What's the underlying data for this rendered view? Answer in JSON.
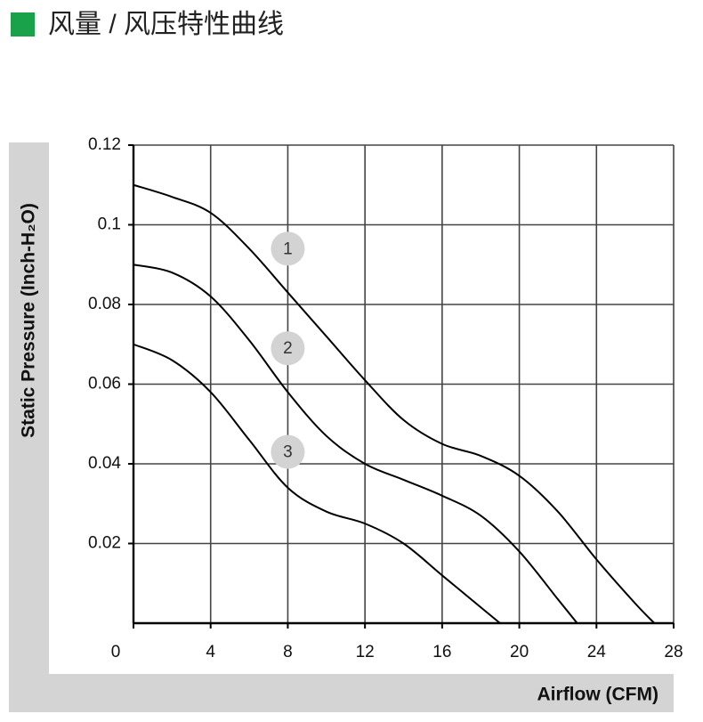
{
  "chart_data": {
    "type": "line",
    "title": "风量 / 风压特性曲线",
    "xlabel": "Airflow (CFM)",
    "ylabel": "Static Pressure (Inch-H₂O)",
    "xlim": [
      0,
      28
    ],
    "ylim": [
      0,
      0.12
    ],
    "xticks": [
      0,
      4,
      8,
      12,
      16,
      20,
      24,
      28
    ],
    "yticks": [
      0.02,
      0.04,
      0.06,
      0.08,
      0.1,
      0.12
    ],
    "grid": true,
    "series": [
      {
        "name": "1",
        "color": "#000000",
        "x": [
          0,
          2,
          4,
          6,
          8,
          10,
          12,
          14,
          16,
          18,
          20,
          22,
          24,
          26,
          27
        ],
        "values": [
          0.11,
          0.107,
          0.103,
          0.094,
          0.083,
          0.072,
          0.061,
          0.051,
          0.045,
          0.042,
          0.037,
          0.028,
          0.016,
          0.005,
          0
        ]
      },
      {
        "name": "2",
        "color": "#000000",
        "x": [
          0,
          2,
          4,
          6,
          8,
          10,
          12,
          14,
          16,
          18,
          20,
          22,
          23
        ],
        "values": [
          0.09,
          0.088,
          0.082,
          0.071,
          0.058,
          0.047,
          0.04,
          0.036,
          0.032,
          0.027,
          0.018,
          0.006,
          0
        ]
      },
      {
        "name": "3",
        "color": "#000000",
        "x": [
          0,
          2,
          4,
          6,
          8,
          10,
          12,
          14,
          16,
          18,
          19
        ],
        "values": [
          0.07,
          0.066,
          0.058,
          0.046,
          0.034,
          0.028,
          0.025,
          0.02,
          0.012,
          0.004,
          0
        ]
      }
    ],
    "annotations": [
      {
        "text": "1",
        "x": 8,
        "y": 0.094
      },
      {
        "text": "2",
        "x": 8,
        "y": 0.069
      },
      {
        "text": "3",
        "x": 8,
        "y": 0.043
      }
    ]
  }
}
